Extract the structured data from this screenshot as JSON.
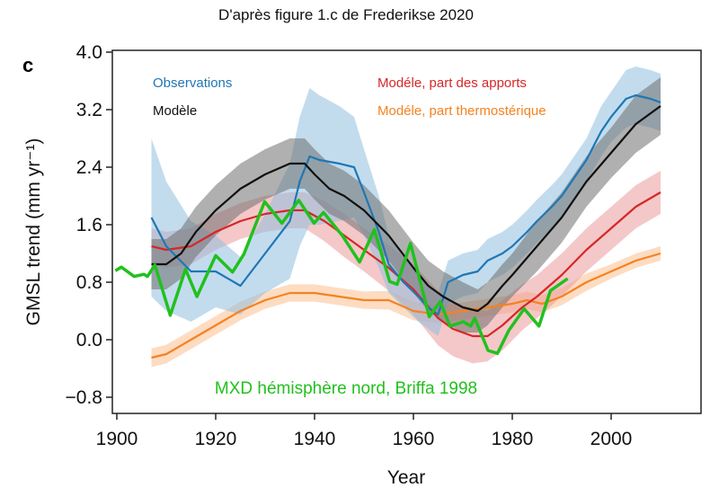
{
  "chart_data": {
    "type": "line",
    "title": "D'après figure 1.c de Frederikse 2020",
    "panel_label": "c",
    "xlabel": "Year",
    "ylabel": "GMSL trend (mm yr⁻¹)",
    "xlim": [
      1900,
      2018
    ],
    "ylim": [
      -1.05,
      4.0
    ],
    "xticks": [
      1900,
      1920,
      1940,
      1960,
      1980,
      2000
    ],
    "xtick_labels": [
      "1900",
      "1920",
      "1940",
      "1960",
      "1980",
      "2000"
    ],
    "yticks": [
      4.0,
      3.2,
      2.4,
      1.6,
      0.8,
      0.0,
      -0.8
    ],
    "ytick_labels": [
      "4.0",
      "3.2",
      "2.4",
      "1.6",
      "0.8",
      "0.0",
      "−0.8"
    ],
    "grid": false,
    "series": [
      {
        "name": "Modéle, part thermostérique",
        "color": "#f58220",
        "band_color": "#fbc08f",
        "x": [
          1907,
          1910,
          1915,
          1920,
          1925,
          1930,
          1935,
          1940,
          1945,
          1950,
          1955,
          1960,
          1965,
          1970,
          1975,
          1980,
          1983,
          1986,
          1990,
          1995,
          2000,
          2005,
          2010
        ],
        "y": [
          -0.25,
          -0.2,
          0.0,
          0.2,
          0.4,
          0.55,
          0.65,
          0.65,
          0.6,
          0.55,
          0.55,
          0.4,
          0.35,
          0.4,
          0.45,
          0.5,
          0.55,
          0.5,
          0.6,
          0.8,
          0.95,
          1.1,
          1.2
        ],
        "band": [
          0.13,
          0.13,
          0.13,
          0.13,
          0.13,
          0.12,
          0.12,
          0.12,
          0.12,
          0.12,
          0.13,
          0.13,
          0.12,
          0.12,
          0.12,
          0.12,
          0.12,
          0.12,
          0.12,
          0.12,
          0.1,
          0.1,
          0.1
        ]
      },
      {
        "name": "Modéle, part des apports",
        "color": "#d62728",
        "band_color": "#eb9a9b",
        "x": [
          1907,
          1910,
          1915,
          1920,
          1925,
          1930,
          1935,
          1938,
          1942,
          1946,
          1950,
          1955,
          1960,
          1965,
          1968,
          1972,
          1975,
          1978,
          1982,
          1985,
          1990,
          1995,
          2000,
          2005,
          2010
        ],
        "y": [
          1.3,
          1.25,
          1.3,
          1.5,
          1.65,
          1.75,
          1.8,
          1.8,
          1.65,
          1.45,
          1.25,
          1.0,
          0.7,
          0.3,
          0.15,
          0.05,
          0.05,
          0.2,
          0.45,
          0.6,
          0.9,
          1.25,
          1.55,
          1.85,
          2.05
        ],
        "band": [
          0.25,
          0.25,
          0.25,
          0.25,
          0.25,
          0.25,
          0.25,
          0.25,
          0.28,
          0.3,
          0.3,
          0.32,
          0.35,
          0.38,
          0.38,
          0.38,
          0.35,
          0.35,
          0.32,
          0.3,
          0.3,
          0.3,
          0.3,
          0.3,
          0.3
        ]
      },
      {
        "name": "Observations",
        "color": "#1f77b4",
        "band_color": "#8fbfe0",
        "x": [
          1907,
          1910,
          1915,
          1920,
          1925,
          1930,
          1935,
          1937,
          1939,
          1941,
          1945,
          1948,
          1950,
          1953,
          1955,
          1958,
          1961,
          1963,
          1965,
          1967,
          1970,
          1973,
          1975,
          1978,
          1980,
          1983,
          1985,
          1988,
          1990,
          1993,
          1995,
          1998,
          2000,
          2003,
          2005,
          2008,
          2010
        ],
        "y": [
          1.7,
          1.3,
          0.95,
          0.95,
          0.75,
          1.2,
          1.65,
          2.2,
          2.55,
          2.5,
          2.45,
          2.4,
          2.05,
          1.5,
          1.05,
          0.8,
          0.6,
          0.45,
          0.35,
          0.8,
          0.9,
          0.95,
          1.1,
          1.2,
          1.3,
          1.5,
          1.65,
          1.85,
          2.0,
          2.3,
          2.5,
          2.9,
          3.1,
          3.35,
          3.4,
          3.35,
          3.3
        ],
        "band": [
          1.1,
          0.9,
          0.7,
          0.5,
          0.4,
          0.55,
          0.8,
          0.9,
          0.95,
          0.9,
          0.8,
          0.7,
          0.6,
          0.5,
          0.4,
          0.35,
          0.35,
          0.3,
          0.3,
          0.3,
          0.3,
          0.3,
          0.3,
          0.3,
          0.3,
          0.3,
          0.3,
          0.3,
          0.3,
          0.3,
          0.3,
          0.35,
          0.35,
          0.4,
          0.4,
          0.4,
          0.4
        ]
      },
      {
        "name": "Modèle",
        "color": "#111111",
        "band_color": "#6f6f6f",
        "x": [
          1907,
          1910,
          1913,
          1916,
          1920,
          1925,
          1930,
          1935,
          1938,
          1940,
          1943,
          1946,
          1950,
          1955,
          1960,
          1963,
          1966,
          1970,
          1973,
          1975,
          1978,
          1980,
          1985,
          1990,
          1995,
          2000,
          2005,
          2010
        ],
        "y": [
          1.05,
          1.05,
          1.2,
          1.5,
          1.8,
          2.1,
          2.3,
          2.45,
          2.45,
          2.3,
          2.1,
          2.0,
          1.8,
          1.45,
          1.0,
          0.75,
          0.6,
          0.45,
          0.4,
          0.5,
          0.75,
          0.9,
          1.3,
          1.7,
          2.2,
          2.6,
          3.0,
          3.25
        ],
        "band": [
          0.35,
          0.35,
          0.35,
          0.35,
          0.35,
          0.35,
          0.35,
          0.35,
          0.35,
          0.35,
          0.35,
          0.35,
          0.35,
          0.35,
          0.35,
          0.35,
          0.35,
          0.35,
          0.3,
          0.3,
          0.3,
          0.3,
          0.35,
          0.35,
          0.35,
          0.35,
          0.4,
          0.4
        ]
      },
      {
        "name": "MXD hémisphère nord, Briffa 1998",
        "color": "#22c01e",
        "x": [
          1899.7,
          1900.9,
          1903.5,
          1905.5,
          1906.2,
          1907.7,
          1910.8,
          1913.9,
          1916.2,
          1920,
          1923.4,
          1925.7,
          1929.9,
          1933.4,
          1936.8,
          1939.9,
          1941.8,
          1945.6,
          1949.1,
          1952.1,
          1955.2,
          1956.7,
          1959.4,
          1963.2,
          1965.4,
          1967.4,
          1970.1,
          1971.6,
          1972.4,
          1975.1,
          1977,
          1979.3,
          1982.4,
          1985.4,
          1987.7,
          1991.2
        ],
        "y": [
          0.96,
          1.01,
          0.88,
          0.91,
          0.88,
          1.04,
          0.34,
          0.98,
          0.6,
          1.17,
          0.94,
          1.19,
          1.92,
          1.62,
          1.94,
          1.62,
          1.77,
          1.45,
          1.08,
          1.53,
          0.81,
          0.77,
          1.34,
          0.32,
          0.53,
          0.19,
          0.25,
          0.19,
          0.3,
          -0.15,
          -0.19,
          0.13,
          0.43,
          0.19,
          0.68,
          0.85
        ]
      }
    ],
    "legend": [
      {
        "label": "Observations",
        "color": "#1f77b4",
        "placement": "top-left"
      },
      {
        "label": "Modèle",
        "color": "#111111",
        "placement": "top-left"
      },
      {
        "label": "Modéle, part des apports",
        "color": "#d62728",
        "placement": "top-right"
      },
      {
        "label": "Modéle, part thermostérique",
        "color": "#f58220",
        "placement": "top-right"
      }
    ],
    "annotation": {
      "label": "MXD hémisphère nord, Briffa 1998",
      "color": "#22c01e"
    }
  }
}
